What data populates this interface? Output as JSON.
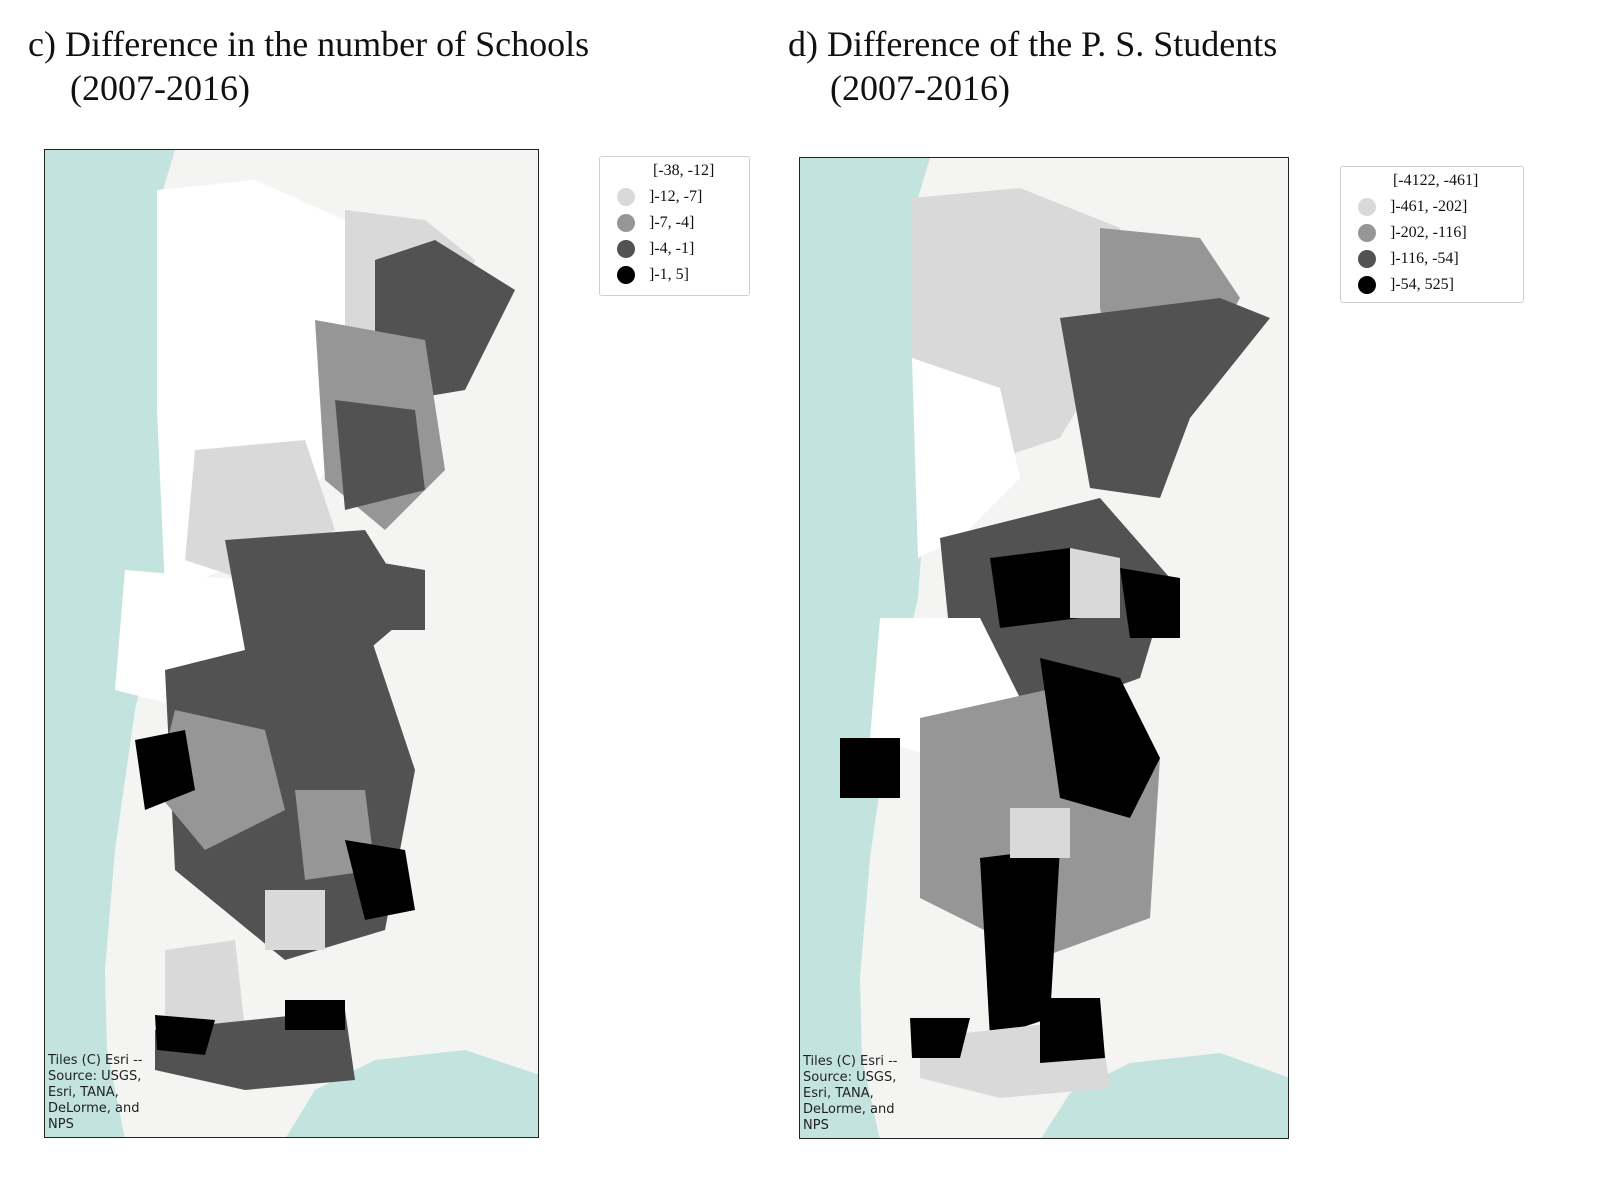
{
  "panels": [
    {
      "title_line1": "c) Difference in the number of Schools",
      "title_line2": "(2007-2016)",
      "legend": [
        {
          "label": "[-38, -12]",
          "color": "#ffffff"
        },
        {
          "label": "]-12, -7]",
          "color": "#d9d9d9"
        },
        {
          "label": "]-7, -4]",
          "color": "#969696"
        },
        {
          "label": "]-4, -1]",
          "color": "#525252"
        },
        {
          "label": "]-1, 5]",
          "color": "#000000"
        }
      ],
      "credit": [
        "Tiles (C) Esri --",
        "Source: USGS,",
        "Esri, TANA,",
        "DeLorme, and",
        "NPS"
      ]
    },
    {
      "title_line1": "d) Difference of the P. S. Students",
      "title_line2": "(2007-2016)",
      "legend": [
        {
          "label": "[-4122, -461]",
          "color": "#ffffff"
        },
        {
          "label": "]-461, -202]",
          "color": "#d9d9d9"
        },
        {
          "label": "]-202, -116]",
          "color": "#969696"
        },
        {
          "label": "]-116, -54]",
          "color": "#525252"
        },
        {
          "label": "]-54, 525]",
          "color": "#000000"
        }
      ],
      "credit": [
        "Tiles (C) Esri --",
        "Source: USGS,",
        "Esri, TANA,",
        "DeLorme, and",
        "NPS"
      ]
    }
  ],
  "colors": {
    "sea": "#c3e3df",
    "land": "#f4f4f2",
    "border": "#222222"
  }
}
